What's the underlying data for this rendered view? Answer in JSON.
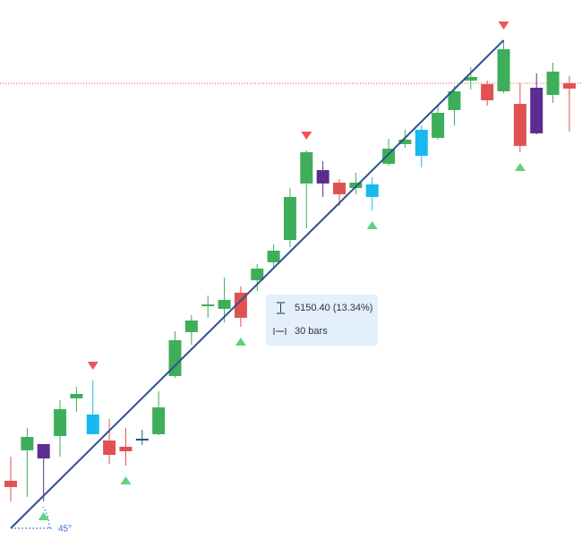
{
  "chart_data": {
    "type": "candlestick",
    "ylim": [
      38486,
      44205
    ],
    "open": [
      39104,
      39427,
      39493,
      39579,
      39978,
      39807,
      39531,
      39465,
      39550,
      39598,
      40215,
      40681,
      40956,
      40928,
      41099,
      41232,
      41422,
      41659,
      42258,
      42400,
      42267,
      42210,
      42248,
      42467,
      42676,
      42552,
      42742,
      43037,
      43350,
      43312,
      43236,
      43103,
      43274,
      43198,
      43322
    ],
    "high": [
      39360,
      39664,
      39493,
      39959,
      40101,
      40168,
      39759,
      39664,
      39645,
      40054,
      40690,
      40861,
      41070,
      41260,
      41165,
      41403,
      41612,
      42210,
      42609,
      42495,
      42305,
      42372,
      42324,
      42733,
      42828,
      42875,
      43094,
      43293,
      43493,
      43350,
      43778,
      43322,
      43426,
      43540,
      43398
    ],
    "low": [
      38885,
      38933,
      38885,
      39360,
      39835,
      39598,
      39284,
      39265,
      39484,
      39588,
      40196,
      40548,
      40833,
      40785,
      40738,
      41118,
      41355,
      41583,
      41783,
      42115,
      42020,
      42144,
      41973,
      42448,
      42638,
      42429,
      42723,
      42875,
      43255,
      43084,
      43217,
      42590,
      42780,
      43113,
      42809
    ],
    "close": [
      39037,
      39569,
      39341,
      39864,
      40025,
      39598,
      39379,
      39417,
      39531,
      39883,
      40595,
      40804,
      40975,
      41023,
      40833,
      41355,
      41545,
      42115,
      42590,
      42258,
      42144,
      42267,
      42115,
      42628,
      42723,
      42828,
      43008,
      43236,
      43388,
      43141,
      43683,
      42657,
      42790,
      43445,
      43265
    ],
    "colors": [
      "#e05252",
      "#3fae5a",
      "#5c2d91",
      "#3fae5a",
      "#3fae5a",
      "#16b9f0",
      "#e05252",
      "#e05252",
      "#1d5b73",
      "#3fae5a",
      "#3fae5a",
      "#3fae5a",
      "#3fae5a",
      "#3fae5a",
      "#e05252",
      "#3fae5a",
      "#3fae5a",
      "#3fae5a",
      "#3fae5a",
      "#5c2d91",
      "#e05252",
      "#3fae5a",
      "#16b9f0",
      "#3fae5a",
      "#3fae5a",
      "#16b9f0",
      "#3fae5a",
      "#3fae5a",
      "#3fae5a",
      "#e05252",
      "#3fae5a",
      "#e05252",
      "#5c2d91",
      "#3fae5a",
      "#e05252"
    ],
    "signals_up": [
      2,
      7,
      14,
      22,
      31
    ],
    "signals_down": [
      5,
      18,
      30
    ],
    "last_price_line": 43322,
    "trend_line": {
      "from": [
        0,
        38600
      ],
      "to": [
        30,
        43778
      ],
      "color": "#2f4f8f"
    },
    "angle_label": "45°",
    "measure": {
      "change": "5150.40 (13.34%)",
      "bars": "30 bars"
    }
  }
}
